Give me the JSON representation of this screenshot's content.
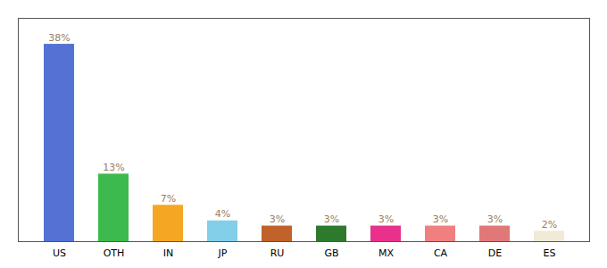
{
  "chart_data": {
    "type": "bar",
    "categories": [
      "US",
      "OTH",
      "IN",
      "JP",
      "RU",
      "GB",
      "MX",
      "CA",
      "DE",
      "ES"
    ],
    "values": [
      38,
      13,
      7,
      4,
      3,
      3,
      3,
      3,
      3,
      2
    ],
    "value_labels": [
      "38%",
      "13%",
      "7%",
      "4%",
      "3%",
      "3%",
      "3%",
      "3%",
      "3%",
      "2%"
    ],
    "colors": [
      "#5472d4",
      "#3dba4e",
      "#f5a623",
      "#82cfea",
      "#c0622a",
      "#2d7a2d",
      "#e9308a",
      "#f08080",
      "#e07878",
      "#f0ead6"
    ],
    "ylim": [
      0,
      43
    ],
    "data_labels": true,
    "tick_labels": "x",
    "grid": false
  }
}
